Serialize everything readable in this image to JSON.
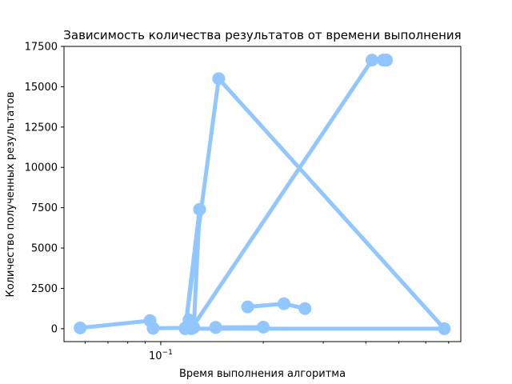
{
  "chart_data": {
    "type": "line",
    "title": "Зависимость количества результатов от времени выполнения",
    "xlabel": "Время выполнения алгоритма",
    "ylabel": "Количество полученных результатов",
    "xscale": "log",
    "xlim": [
      0.052,
      0.76
    ],
    "ylim": [
      -800,
      17500
    ],
    "grid": false,
    "color": "#92c6ff",
    "x_major_ticks": [
      {
        "value": 0.1,
        "label": "10−1"
      }
    ],
    "x_minor_ticks": [
      0.06,
      0.07,
      0.08,
      0.09,
      0.2,
      0.3,
      0.4,
      0.5,
      0.6,
      0.7
    ],
    "y_ticks": [
      0,
      2500,
      5000,
      7500,
      10000,
      12500,
      15000,
      17500
    ],
    "series": [
      {
        "points": [
          [
            0.058,
            50
          ],
          [
            0.093,
            500
          ],
          [
            0.095,
            30
          ],
          [
            0.118,
            50
          ],
          [
            0.121,
            550
          ],
          [
            0.125,
            80
          ],
          [
            0.13,
            7400
          ],
          [
            0.118,
            0
          ],
          [
            0.148,
            15500
          ],
          [
            0.68,
            0
          ],
          [
            0.123,
            0
          ],
          [
            0.417,
            16650
          ],
          [
            0.45,
            16650
          ],
          [
            0.46,
            16650
          ],
          [
            0.46,
            16650
          ]
        ]
      },
      {
        "points": [
          [
            0.145,
            80
          ],
          [
            0.2,
            100
          ],
          [
            0.145,
            80
          ]
        ]
      },
      {
        "points": [
          [
            0.18,
            1350
          ],
          [
            0.23,
            1550
          ],
          [
            0.265,
            1250
          ]
        ]
      }
    ]
  }
}
